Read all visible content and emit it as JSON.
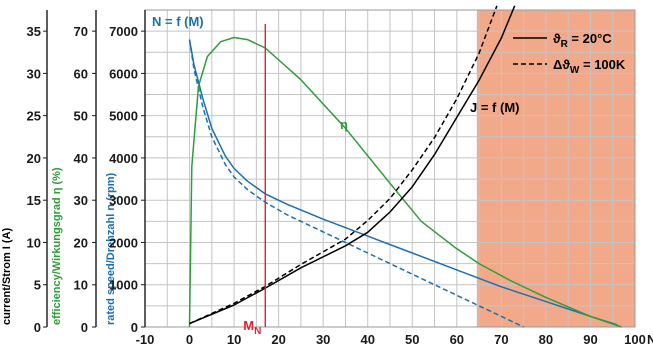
{
  "chart_data": {
    "type": "line",
    "x_unit": "Ncm",
    "xlim": [
      -10,
      100
    ],
    "x_ticks": [
      "-10",
      "0",
      "10",
      "20",
      "30",
      "40",
      "50",
      "60",
      "70",
      "80",
      "90",
      "100"
    ],
    "y_axes": {
      "speed": {
        "label": "rated speed/Drehzahl n (rpm)",
        "lim": [
          0,
          7500
        ],
        "ticks": [
          "0",
          "1000",
          "2000",
          "3000",
          "4000",
          "5000",
          "6000",
          "7000"
        ],
        "color": "#1a6fb5"
      },
      "efficiency": {
        "label": "efficiency/Wirkungsgrad η (%)",
        "lim": [
          0,
          75
        ],
        "ticks": [
          "0",
          "10",
          "20",
          "30",
          "40",
          "50",
          "60",
          "70"
        ],
        "color": "#2e9d3a"
      },
      "current": {
        "label": "current/Strom I (A)",
        "lim": [
          0,
          37.5
        ],
        "ticks": [
          "0",
          "5",
          "10",
          "15",
          "20",
          "25",
          "30",
          "35"
        ],
        "color": "#000000"
      }
    },
    "shaded_region": {
      "from": 64.5,
      "to": 100,
      "color": "#f2a98a"
    },
    "rated_torque": {
      "x": 17,
      "label": "M",
      "sub": "N",
      "color": "#e8202a"
    },
    "legend": {
      "position": "top-right",
      "entries": [
        {
          "style": "solid",
          "base": "ϑ",
          "sub": "R",
          "rest": " = 20°C"
        },
        {
          "style": "dashed",
          "base": "Δϑ",
          "sub": "W",
          "rest": " = 100K"
        }
      ]
    },
    "annotations": {
      "speed": "N = f (M)",
      "current": "J = f (M)",
      "efficiency": "η"
    },
    "series": [
      {
        "color": "#1a6fb5",
        "style": "solid",
        "axis": "speed",
        "x": [
          0,
          1,
          3,
          5,
          8,
          10,
          13,
          17,
          22,
          30,
          40,
          50,
          60,
          70,
          80,
          90,
          96
        ],
        "y": [
          6800,
          6200,
          5400,
          4700,
          4050,
          3750,
          3450,
          3150,
          2900,
          2550,
          2150,
          1750,
          1350,
          950,
          600,
          250,
          50
        ]
      },
      {
        "color": "#1a6fb5",
        "style": "dashed",
        "axis": "speed",
        "x": [
          0,
          1,
          3,
          5,
          8,
          10,
          13,
          17,
          22,
          30,
          40,
          50,
          60,
          70,
          75
        ],
        "y": [
          6800,
          6100,
          5200,
          4500,
          3850,
          3550,
          3250,
          2950,
          2650,
          2250,
          1750,
          1250,
          750,
          250,
          0
        ]
      },
      {
        "color": "#2e9d3a",
        "style": "solid",
        "axis": "efficiency",
        "x": [
          0,
          0.5,
          2,
          4,
          7,
          10,
          13,
          17,
          25,
          35,
          45,
          52,
          60,
          65,
          72,
          80,
          90,
          97
        ],
        "y": [
          0,
          38,
          57,
          64,
          67.5,
          68.5,
          68,
          66,
          58.5,
          47,
          34,
          25,
          18.5,
          15,
          11,
          7,
          2.5,
          0
        ]
      },
      {
        "color": "#000000",
        "style": "solid",
        "axis": "current",
        "x": [
          0,
          10,
          17,
          25,
          35,
          40,
          45,
          50,
          55,
          60,
          65,
          70,
          73
        ],
        "y": [
          0.4,
          2.6,
          4.6,
          7,
          9.6,
          11.2,
          13.6,
          16.6,
          20.4,
          24.8,
          29.2,
          34.2,
          38
        ]
      },
      {
        "color": "#000000",
        "style": "dashed",
        "axis": "current",
        "x": [
          0,
          10,
          17,
          25,
          35,
          40,
          45,
          50,
          55,
          60,
          65,
          69
        ],
        "y": [
          0.4,
          2.8,
          4.8,
          7.4,
          10.4,
          12.6,
          15.2,
          18.6,
          22.4,
          27,
          32.4,
          38
        ]
      }
    ]
  }
}
